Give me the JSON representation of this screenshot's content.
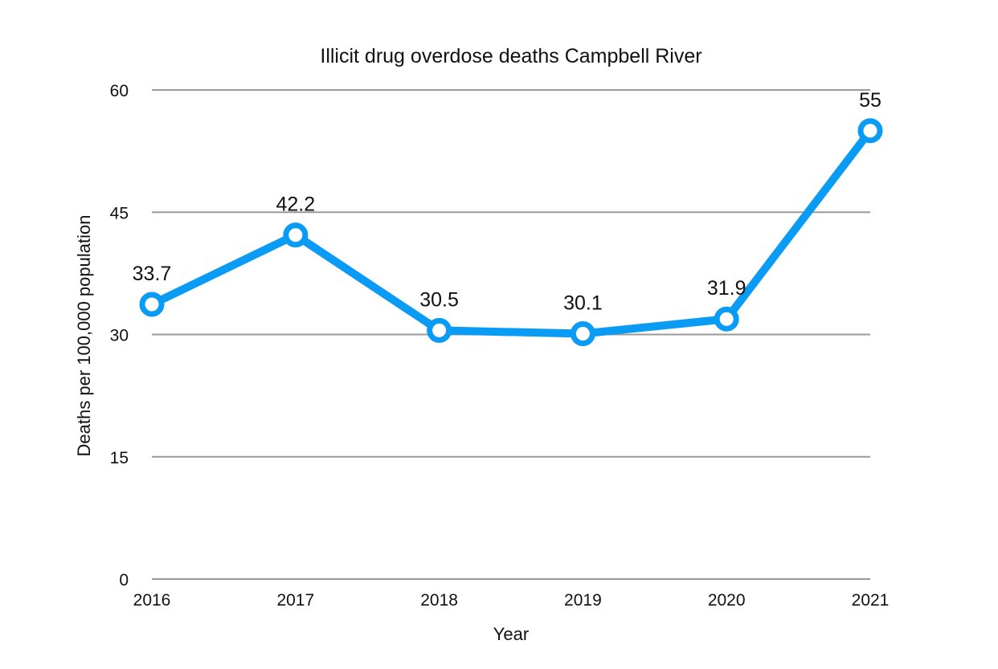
{
  "chart_data": {
    "type": "line",
    "title": "Illicit drug overdose deaths Campbell River",
    "xlabel": "Year",
    "ylabel": "Deaths per 100,000 population",
    "categories": [
      "2016",
      "2017",
      "2018",
      "2019",
      "2020",
      "2021"
    ],
    "series": [
      {
        "values": [
          33.7,
          42.2,
          30.5,
          30.1,
          31.9,
          55
        ],
        "labels": [
          "33.7",
          "42.2",
          "30.5",
          "30.1",
          "31.9",
          "55"
        ],
        "color": "#0a9bf5"
      }
    ],
    "yticks": [
      "0",
      "15",
      "30",
      "45",
      "60"
    ],
    "ylim": [
      0,
      60
    ],
    "grid": true,
    "legend": "none"
  }
}
